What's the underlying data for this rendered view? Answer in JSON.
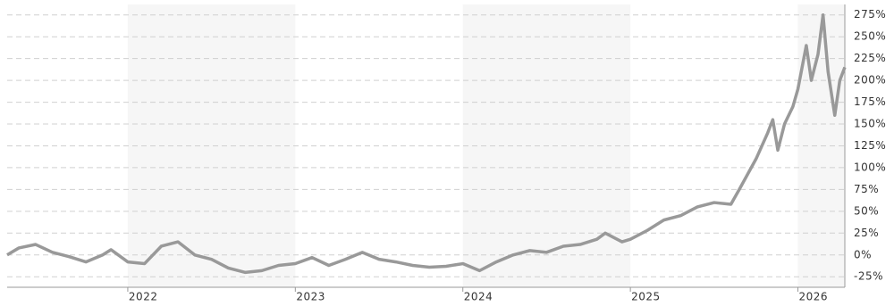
{
  "chart_data": {
    "type": "line",
    "x": [
      2021.28,
      2021.35,
      2021.45,
      2021.55,
      2021.65,
      2021.75,
      2021.85,
      2021.9,
      2022.0,
      2022.1,
      2022.2,
      2022.3,
      2022.4,
      2022.5,
      2022.6,
      2022.7,
      2022.8,
      2022.9,
      2023.0,
      2023.1,
      2023.2,
      2023.3,
      2023.4,
      2023.5,
      2023.6,
      2023.7,
      2023.8,
      2023.9,
      2024.0,
      2024.1,
      2024.2,
      2024.3,
      2024.4,
      2024.5,
      2024.6,
      2024.7,
      2024.8,
      2024.85,
      2024.95,
      2025.0,
      2025.1,
      2025.2,
      2025.3,
      2025.4,
      2025.5,
      2025.6,
      2025.65,
      2025.75,
      2025.82,
      2025.85,
      2025.88,
      2025.92,
      2025.97,
      2026.0,
      2026.05,
      2026.08,
      2026.12,
      2026.15,
      2026.18,
      2026.22,
      2026.25,
      2026.28
    ],
    "series": [
      {
        "color": "#999999",
        "values": [
          0,
          8,
          12,
          3,
          -2,
          -8,
          0,
          6,
          -8,
          -10,
          10,
          15,
          0,
          -5,
          -15,
          -20,
          -18,
          -12,
          -10,
          -3,
          -12,
          -5,
          3,
          -5,
          -8,
          -12,
          -14,
          -13,
          -10,
          -18,
          -8,
          0,
          5,
          3,
          10,
          12,
          18,
          25,
          15,
          18,
          28,
          40,
          45,
          55,
          60,
          58,
          75,
          110,
          140,
          155,
          120,
          150,
          170,
          190,
          240,
          200,
          230,
          275,
          210,
          160,
          200,
          215
        ]
      }
    ],
    "xlim": [
      2021.28,
      2026.28
    ],
    "xticks": [
      2022,
      2023,
      2024,
      2025,
      2026
    ],
    "ylim": [
      -35,
      287
    ],
    "yticks": [
      {
        "value": -25,
        "label": "-25%"
      },
      {
        "value": 0,
        "label": "0%"
      },
      {
        "value": 25,
        "label": "25%"
      },
      {
        "value": 50,
        "label": "50%"
      },
      {
        "value": 75,
        "label": "75%"
      },
      {
        "value": 100,
        "label": "100%"
      },
      {
        "value": 125,
        "label": "125%"
      },
      {
        "value": 150,
        "label": "150%"
      },
      {
        "value": 175,
        "label": "175%"
      },
      {
        "value": 200,
        "label": "200%"
      },
      {
        "value": 225,
        "label": "225%"
      },
      {
        "value": 250,
        "label": "250%"
      },
      {
        "value": 275,
        "label": "275%"
      }
    ],
    "grid": true
  }
}
